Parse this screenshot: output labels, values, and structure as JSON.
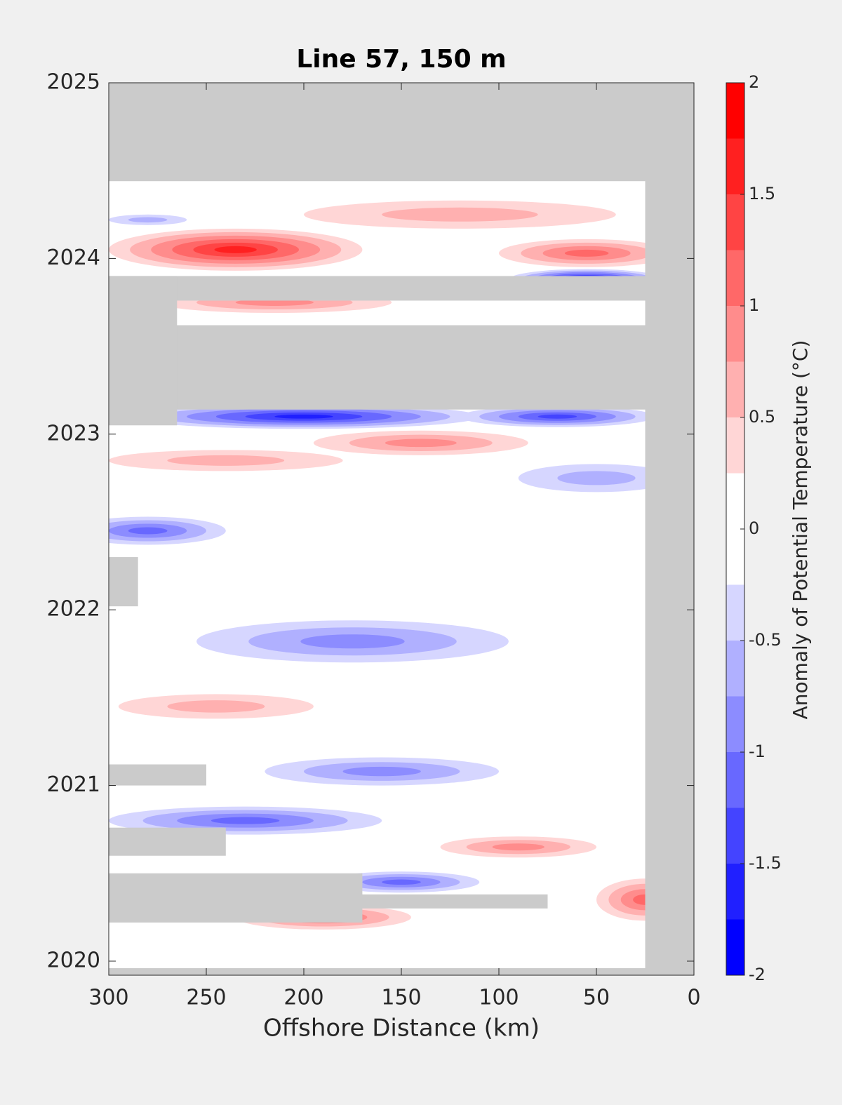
{
  "chart_data": {
    "type": "contourf",
    "title": "Line 57, 150 m",
    "x_label": "Offshore Distance (km)",
    "colorbar_label": "Anomaly of Potential Temperature (°C)",
    "xlim": [
      300,
      0
    ],
    "xticks": [
      300,
      250,
      200,
      150,
      100,
      50,
      0
    ],
    "ylim": [
      2019.92,
      2025
    ],
    "yticks": [
      2020,
      2021,
      2022,
      2023,
      2024,
      2025
    ],
    "clim": [
      -2,
      2
    ],
    "cticks": [
      -2,
      -1.5,
      -1,
      -0.5,
      0,
      0.5,
      1,
      1.5,
      2
    ],
    "colors": [
      "#0000ff",
      "#2020ff",
      "#4444ff",
      "#6868ff",
      "#8c8cff",
      "#b0b0ff",
      "#d6d6ff",
      "#ffffff",
      "#ffffff",
      "#ffd6d6",
      "#ffb0b0",
      "#ff8c8c",
      "#ff6868",
      "#ff4444",
      "#ff2020",
      "#ff0000"
    ],
    "missing_color": "#cbcbcb",
    "data_extent": [
      300,
      25,
      2019.96,
      2024.44
    ],
    "missing_regions": [
      [
        300,
        25,
        2023.14,
        2023.62
      ],
      [
        300,
        25,
        2023.76,
        2023.9
      ],
      [
        300,
        265,
        2023.05,
        2023.9
      ],
      [
        300,
        285,
        2022.02,
        2022.3
      ],
      [
        300,
        250,
        2021.0,
        2021.12
      ],
      [
        300,
        240,
        2020.6,
        2020.76
      ],
      [
        300,
        75,
        2020.3,
        2020.38
      ],
      [
        300,
        170,
        2020.22,
        2020.5
      ]
    ],
    "features": [
      {
        "x": 235,
        "y": 2024.05,
        "rx": 65,
        "ry": 0.12,
        "level": 1.5
      },
      {
        "x": 55,
        "y": 2024.03,
        "rx": 45,
        "ry": 0.08,
        "level": 1
      },
      {
        "x": 55,
        "y": 2023.88,
        "rx": 40,
        "ry": 0.06,
        "level": -1.75
      },
      {
        "x": 200,
        "y": 2023.1,
        "rx": 90,
        "ry": 0.07,
        "level": -1.5
      },
      {
        "x": 70,
        "y": 2023.1,
        "rx": 50,
        "ry": 0.06,
        "level": -1.25
      },
      {
        "x": 140,
        "y": 2022.95,
        "rx": 55,
        "ry": 0.07,
        "level": 0.75
      },
      {
        "x": 215,
        "y": 2023.75,
        "rx": 60,
        "ry": 0.06,
        "level": 0.75
      },
      {
        "x": 280,
        "y": 2022.45,
        "rx": 40,
        "ry": 0.08,
        "level": -1
      },
      {
        "x": 175,
        "y": 2021.82,
        "rx": 80,
        "ry": 0.12,
        "level": -0.75
      },
      {
        "x": 160,
        "y": 2021.08,
        "rx": 60,
        "ry": 0.08,
        "level": -0.75
      },
      {
        "x": 230,
        "y": 2020.8,
        "rx": 70,
        "ry": 0.08,
        "level": -1
      },
      {
        "x": 150,
        "y": 2020.45,
        "rx": 40,
        "ry": 0.06,
        "level": -1
      },
      {
        "x": 190,
        "y": 2020.25,
        "rx": 45,
        "ry": 0.07,
        "level": 1
      },
      {
        "x": 25,
        "y": 2020.35,
        "rx": 25,
        "ry": 0.12,
        "level": 1
      },
      {
        "x": 245,
        "y": 2021.45,
        "rx": 50,
        "ry": 0.07,
        "level": 0.5
      },
      {
        "x": 240,
        "y": 2022.85,
        "rx": 60,
        "ry": 0.06,
        "level": 0.5
      },
      {
        "x": 50,
        "y": 2022.75,
        "rx": 40,
        "ry": 0.08,
        "level": -0.5
      },
      {
        "x": 120,
        "y": 2024.25,
        "rx": 80,
        "ry": 0.08,
        "level": 0.5
      },
      {
        "x": 90,
        "y": 2020.65,
        "rx": 40,
        "ry": 0.06,
        "level": 0.75
      },
      {
        "x": 280,
        "y": 2024.22,
        "rx": 20,
        "ry": 0.03,
        "level": -0.5
      }
    ]
  }
}
